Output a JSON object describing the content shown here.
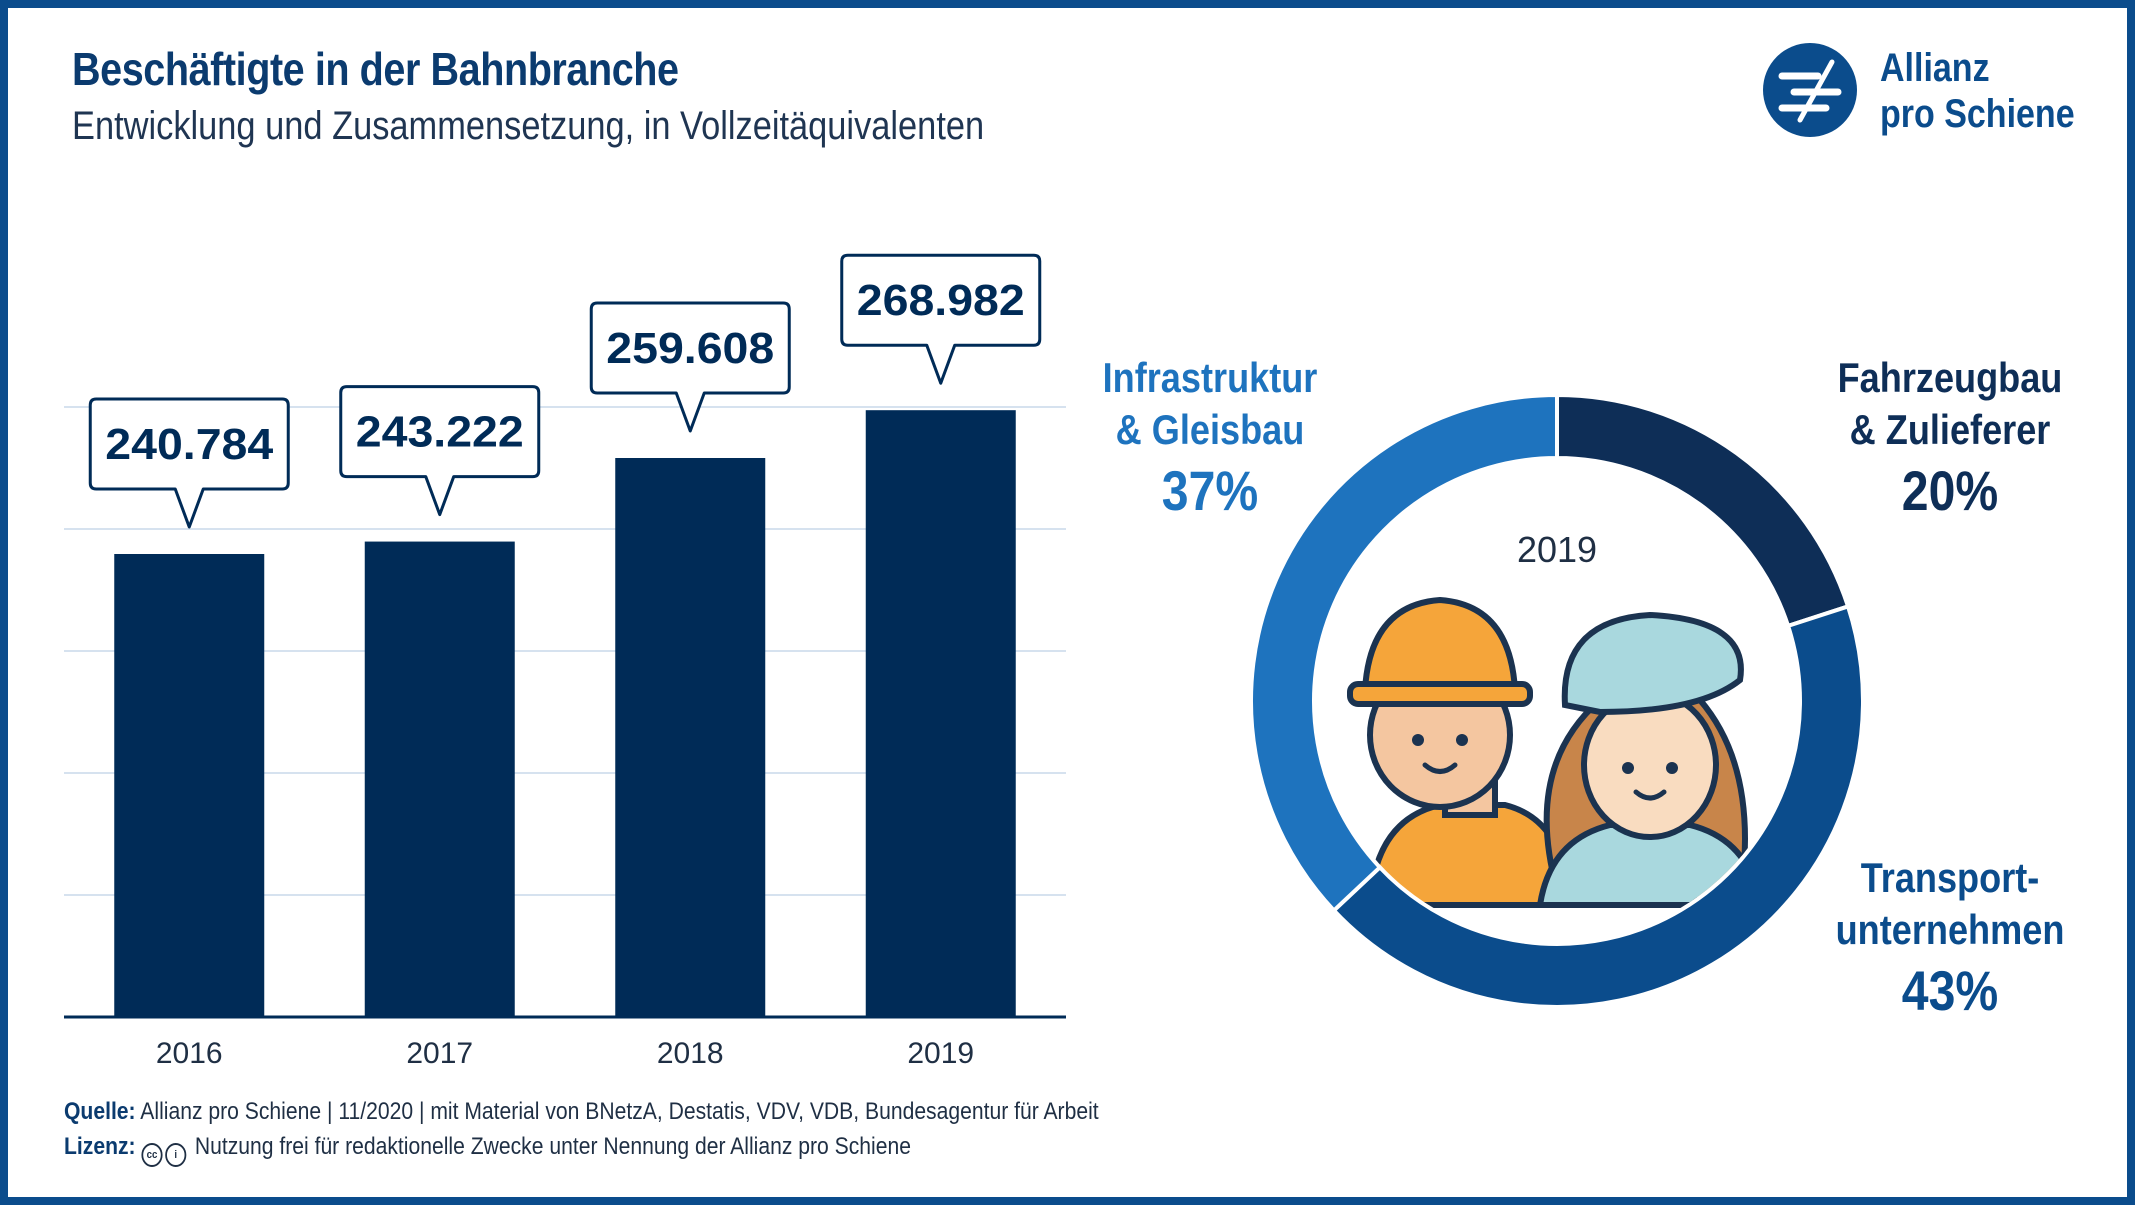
{
  "title": "Beschäftigte in der Bahnbranche",
  "subtitle": "Entwicklung und Zusammensetzung, in Vollzeitäquivalenten",
  "logo": {
    "line1": "Allianz",
    "line2": "pro Schiene",
    "icon": "rail-logo-icon"
  },
  "colors": {
    "navy": "#002b57",
    "mid": "#0b4c8c",
    "light": "#1e73be",
    "grid": "#c8d9ea"
  },
  "chart_data": [
    {
      "type": "bar",
      "categories": [
        "2016",
        "2017",
        "2018",
        "2019"
      ],
      "values": [
        240784,
        243222,
        259608,
        268982
      ],
      "value_labels": [
        "240.784",
        "243.222",
        "259.608",
        "268.982"
      ],
      "grid": true
    },
    {
      "type": "pie",
      "center_label": "2019",
      "segments": [
        {
          "name": "Fahrzeugbau & Zulieferer",
          "line1": "Fahrzeugbau",
          "line2": "& Zulieferer",
          "pct_label": "20%",
          "value": 20,
          "color": "#0e2e57"
        },
        {
          "name": "Transportunternehmen",
          "line1": "Transport-",
          "line2": "unternehmen",
          "pct_label": "43%",
          "value": 43,
          "color": "#0b4c8c"
        },
        {
          "name": "Infrastruktur & Gleisbau",
          "line1": "Infrastruktur",
          "line2": "& Gleisbau",
          "pct_label": "37%",
          "value": 37,
          "color": "#1e73be"
        }
      ]
    }
  ],
  "footer": {
    "source_label": "Quelle:",
    "source_text": "Allianz pro Schiene | 11/2020 | mit Material von BNetzA, Destatis, VDV, VDB, Bundesagentur für Arbeit",
    "license_label": "Lizenz:",
    "license_text": "Nutzung frei für redaktionelle Zwecke unter Nennung der Allianz pro Schiene",
    "license_icons": [
      "cc-icon",
      "attribution-icon"
    ]
  }
}
